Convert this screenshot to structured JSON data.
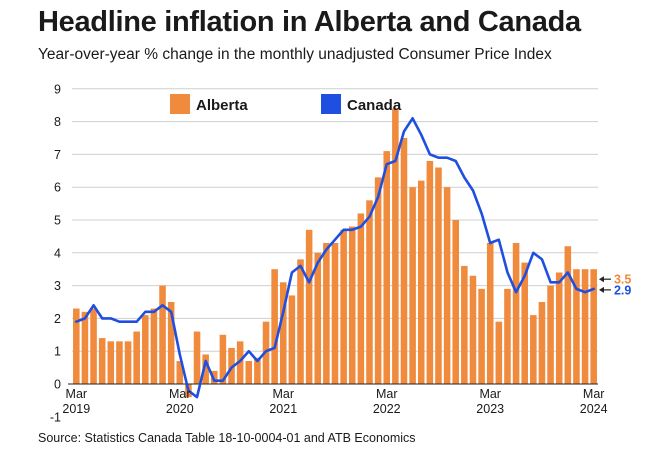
{
  "title": "Headline inflation in Alberta and Canada",
  "subtitle": "Year-over-year % change in the monthly unadjusted Consumer Price Index",
  "source": "Source: Statistics Canada Table 18-10-0004-01 and ATB Economics",
  "colors": {
    "alberta": "#f08a3c",
    "canada": "#1f4fe0",
    "grid": "#cfcfcf",
    "text": "#1a1a1a"
  },
  "chart_data": {
    "type": "bar+line",
    "title": "Headline inflation in Alberta and Canada",
    "subtitle": "Year-over-year % change in the monthly unadjusted Consumer Price Index",
    "xlabel": "",
    "ylabel": "",
    "ylim": [
      -1,
      9
    ],
    "yticks": [
      "-1",
      "0",
      "1",
      "2",
      "3",
      "4",
      "5",
      "6",
      "7",
      "8",
      "9"
    ],
    "xticks": [
      {
        "month": "Mar",
        "year": "2019"
      },
      {
        "month": "Mar",
        "year": "2020"
      },
      {
        "month": "Mar",
        "year": "2021"
      },
      {
        "month": "Mar",
        "year": "2022"
      },
      {
        "month": "Mar",
        "year": "2023"
      },
      {
        "month": "Mar",
        "year": "2024"
      }
    ],
    "grid": "horizontal",
    "legend_position": "top",
    "x": [
      "2019-03",
      "2019-04",
      "2019-05",
      "2019-06",
      "2019-07",
      "2019-08",
      "2019-09",
      "2019-10",
      "2019-11",
      "2019-12",
      "2020-01",
      "2020-02",
      "2020-03",
      "2020-04",
      "2020-05",
      "2020-06",
      "2020-07",
      "2020-08",
      "2020-09",
      "2020-10",
      "2020-11",
      "2020-12",
      "2021-01",
      "2021-02",
      "2021-03",
      "2021-04",
      "2021-05",
      "2021-06",
      "2021-07",
      "2021-08",
      "2021-09",
      "2021-10",
      "2021-11",
      "2021-12",
      "2022-01",
      "2022-02",
      "2022-03",
      "2022-04",
      "2022-05",
      "2022-06",
      "2022-07",
      "2022-08",
      "2022-09",
      "2022-10",
      "2022-11",
      "2022-12",
      "2023-01",
      "2023-02",
      "2023-03",
      "2023-04",
      "2023-05",
      "2023-06",
      "2023-07",
      "2023-08",
      "2023-09",
      "2023-10",
      "2023-11",
      "2023-12",
      "2024-01",
      "2024-02",
      "2024-03"
    ],
    "series": [
      {
        "name": "Alberta",
        "type": "bar",
        "values": [
          2.3,
          2.2,
          2.3,
          1.4,
          1.3,
          1.3,
          1.3,
          1.6,
          2.1,
          2.3,
          3.0,
          2.5,
          0.7,
          -0.4,
          1.6,
          0.9,
          0.4,
          1.5,
          1.1,
          1.3,
          0.7,
          0.8,
          1.9,
          3.5,
          3.1,
          2.7,
          3.8,
          4.7,
          4.0,
          4.3,
          4.3,
          4.7,
          4.8,
          5.2,
          5.6,
          6.3,
          7.1,
          8.4,
          7.5,
          6.0,
          6.2,
          6.8,
          6.6,
          6.0,
          5.0,
          3.6,
          3.3,
          2.9,
          4.3,
          1.9,
          2.9,
          4.3,
          3.7,
          2.1,
          2.5,
          3.0,
          3.4,
          4.2,
          3.5,
          3.5,
          3.5
        ]
      },
      {
        "name": "Canada",
        "type": "line",
        "values": [
          1.9,
          2.0,
          2.4,
          2.0,
          2.0,
          1.9,
          1.9,
          1.9,
          2.2,
          2.2,
          2.4,
          2.2,
          0.9,
          -0.2,
          -0.4,
          0.7,
          0.1,
          0.1,
          0.5,
          0.7,
          1.0,
          0.7,
          1.0,
          1.1,
          2.2,
          3.4,
          3.6,
          3.1,
          3.7,
          4.1,
          4.4,
          4.7,
          4.7,
          4.8,
          5.1,
          5.7,
          6.7,
          6.8,
          7.7,
          8.1,
          7.6,
          7.0,
          6.9,
          6.9,
          6.8,
          6.3,
          5.9,
          5.2,
          4.3,
          4.4,
          3.4,
          2.8,
          3.3,
          4.0,
          3.8,
          3.1,
          3.1,
          3.4,
          2.9,
          2.8,
          2.9
        ]
      }
    ],
    "annotations": [
      {
        "series": "Alberta",
        "label": "3.5"
      },
      {
        "series": "Canada",
        "label": "2.9"
      }
    ]
  }
}
